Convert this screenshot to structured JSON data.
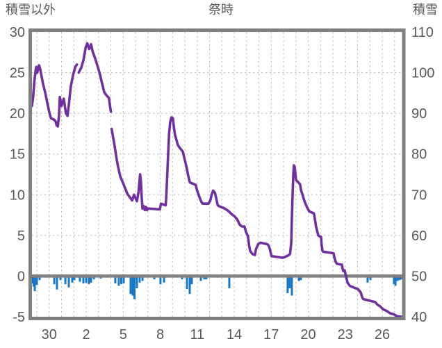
{
  "chart_data": {
    "type": "line",
    "title": "祭時",
    "left_axis": {
      "title": "積雪以外",
      "min": -5,
      "max": 30,
      "ticks": [
        30,
        25,
        20,
        15,
        10,
        5,
        0,
        -5
      ]
    },
    "right_axis": {
      "title": "積雪",
      "min": 40,
      "max": 110,
      "ticks": [
        110,
        100,
        90,
        80,
        70,
        60,
        50,
        40
      ]
    },
    "x_axis": {
      "tick_labels": [
        "30",
        "2",
        "5",
        "8",
        "11",
        "14",
        "17",
        "20",
        "23",
        "26"
      ],
      "tick_days": [
        1,
        4,
        7,
        10,
        13,
        16,
        19,
        22,
        25,
        28
      ],
      "day_min": -0.4,
      "day_max": 29.6,
      "gridline_count": 30
    },
    "grid": {
      "color": "#bdbdbd",
      "h_values": [
        25,
        20,
        15,
        10,
        5
      ]
    },
    "zero_line": {
      "value": 0,
      "color": "#808080"
    },
    "frame_color": "#808080",
    "text_color": "#595959",
    "series": [
      {
        "name": "snow-line",
        "type": "line",
        "axis": "left",
        "color": "#7030A0",
        "segments": [
          [
            [
              -0.4,
              20.9
            ],
            [
              -0.3,
              22.0
            ],
            [
              -0.2,
              24.0
            ],
            [
              -0.1,
              25.3
            ],
            [
              -0.05,
              25.7
            ],
            [
              0.03,
              25.0
            ],
            [
              0.17,
              25.9
            ],
            [
              0.28,
              25.4
            ],
            [
              0.49,
              23.7
            ],
            [
              0.67,
              22.6
            ],
            [
              0.86,
              21.2
            ],
            [
              1.01,
              20.1
            ],
            [
              1.14,
              19.4
            ],
            [
              1.41,
              19.2
            ],
            [
              1.52,
              19.0
            ],
            [
              1.61,
              18.5
            ],
            [
              1.7,
              18.4
            ],
            [
              1.8,
              19.8
            ],
            [
              1.86,
              22.0
            ],
            [
              1.99,
              20.9
            ],
            [
              2.18,
              21.8
            ],
            [
              2.36,
              20.0
            ],
            [
              2.48,
              19.7
            ],
            [
              2.59,
              21.0
            ],
            [
              2.74,
              23.2
            ],
            [
              2.93,
              24.7
            ],
            [
              3.11,
              25.7
            ],
            [
              3.25,
              26.0
            ]
          ],
          [
            [
              3.39,
              25.0
            ],
            [
              3.6,
              25.6
            ],
            [
              3.77,
              26.5
            ],
            [
              3.96,
              28.1
            ],
            [
              4.09,
              28.6
            ],
            [
              4.24,
              27.9
            ],
            [
              4.39,
              28.5
            ],
            [
              4.52,
              27.6
            ],
            [
              4.71,
              26.8
            ],
            [
              4.9,
              25.9
            ],
            [
              5.08,
              25.0
            ],
            [
              5.28,
              23.7
            ],
            [
              5.46,
              22.6
            ],
            [
              5.65,
              22.2
            ],
            [
              5.84,
              21.9
            ],
            [
              5.93,
              20.9
            ],
            [
              6.0,
              20.2
            ]
          ],
          [
            [
              6.06,
              18.1
            ],
            [
              6.18,
              17.1
            ],
            [
              6.31,
              15.9
            ],
            [
              6.4,
              15.0
            ],
            [
              6.49,
              14.2
            ],
            [
              6.59,
              13.4
            ],
            [
              6.77,
              12.2
            ],
            [
              6.97,
              11.5
            ],
            [
              7.15,
              10.8
            ],
            [
              7.34,
              10.1
            ],
            [
              7.53,
              9.7
            ],
            [
              7.72,
              9.3
            ],
            [
              7.88,
              10.0
            ],
            [
              8.11,
              9.2
            ],
            [
              8.24,
              10.3
            ],
            [
              8.37,
              12.5
            ],
            [
              8.43,
              11.7
            ],
            [
              8.5,
              9.7
            ],
            [
              8.56,
              8.3
            ],
            [
              8.66,
              8.6
            ],
            [
              8.75,
              8.1
            ],
            [
              8.84,
              8.5
            ],
            [
              8.94,
              8.1
            ],
            [
              9.01,
              8.3
            ],
            [
              9.97,
              8.2
            ],
            [
              10.06,
              8.9
            ],
            [
              10.44,
              8.7
            ],
            [
              10.49,
              9.7
            ],
            [
              10.57,
              12.5
            ],
            [
              10.65,
              15.3
            ],
            [
              10.72,
              17.5
            ],
            [
              10.81,
              18.9
            ],
            [
              10.91,
              19.5
            ],
            [
              11.02,
              19.4
            ],
            [
              11.1,
              18.4
            ],
            [
              11.19,
              17.4
            ],
            [
              11.32,
              16.7
            ],
            [
              11.43,
              16.1
            ],
            [
              11.56,
              15.8
            ],
            [
              11.83,
              15.3
            ],
            [
              12.0,
              14.2
            ],
            [
              12.13,
              13.4
            ],
            [
              12.26,
              12.4
            ],
            [
              12.37,
              11.7
            ],
            [
              12.41,
              11.5
            ],
            [
              12.88,
              11.2
            ],
            [
              12.97,
              10.6
            ],
            [
              13.16,
              9.8
            ],
            [
              13.31,
              9.2
            ],
            [
              13.44,
              8.9
            ],
            [
              13.91,
              8.9
            ],
            [
              14.06,
              9.3
            ],
            [
              14.19,
              10.1
            ],
            [
              14.29,
              10.5
            ],
            [
              14.44,
              10.2
            ],
            [
              14.53,
              9.6
            ],
            [
              14.66,
              8.7
            ],
            [
              14.76,
              8.6
            ],
            [
              15.23,
              8.3
            ],
            [
              15.42,
              8.1
            ],
            [
              15.6,
              7.9
            ],
            [
              15.79,
              7.6
            ],
            [
              15.98,
              7.4
            ],
            [
              16.17,
              7.1
            ],
            [
              16.26,
              6.9
            ],
            [
              16.45,
              6.3
            ],
            [
              16.62,
              6.1
            ],
            [
              16.83,
              6.1
            ],
            [
              16.88,
              5.8
            ],
            [
              16.96,
              5.4
            ],
            [
              17.11,
              4.9
            ],
            [
              17.2,
              3.8
            ],
            [
              17.29,
              3.1
            ],
            [
              17.48,
              2.7
            ],
            [
              17.67,
              2.6
            ],
            [
              17.76,
              3.3
            ],
            [
              17.95,
              3.95
            ],
            [
              18.14,
              4.1
            ],
            [
              18.7,
              3.9
            ],
            [
              18.8,
              3.7
            ],
            [
              18.89,
              3.3
            ],
            [
              19.02,
              2.45
            ],
            [
              19.92,
              2.25
            ],
            [
              20.11,
              2.35
            ],
            [
              20.39,
              2.55
            ],
            [
              20.52,
              2.7
            ],
            [
              20.62,
              4.1
            ],
            [
              20.67,
              6.9
            ],
            [
              20.73,
              10.0
            ],
            [
              20.79,
              12.5
            ],
            [
              20.83,
              13.6
            ],
            [
              20.9,
              13.4
            ],
            [
              20.95,
              12.7
            ],
            [
              21.01,
              11.8
            ],
            [
              21.33,
              11.3
            ],
            [
              21.42,
              10.5
            ],
            [
              21.52,
              10.1
            ],
            [
              21.61,
              9.6
            ],
            [
              21.7,
              9.2
            ],
            [
              21.8,
              8.8
            ],
            [
              21.95,
              8.3
            ],
            [
              22.08,
              7.95
            ],
            [
              22.46,
              7.7
            ],
            [
              22.55,
              6.9
            ],
            [
              22.64,
              6.05
            ],
            [
              22.76,
              5.3
            ],
            [
              22.83,
              4.95
            ],
            [
              23.04,
              4.8
            ],
            [
              23.08,
              3.9
            ],
            [
              23.15,
              3.1
            ],
            [
              23.21,
              3.0
            ],
            [
              24.05,
              2.8
            ],
            [
              24.15,
              2.1
            ],
            [
              24.24,
              1.7
            ],
            [
              24.33,
              1.5
            ],
            [
              24.73,
              1.4
            ],
            [
              24.77,
              1.0
            ],
            [
              24.84,
              0.6
            ],
            [
              24.95,
              0.7
            ],
            [
              25.03,
              0.2
            ],
            [
              25.18,
              -0.8
            ],
            [
              25.37,
              -1.2
            ],
            [
              25.84,
              -1.5
            ],
            [
              26.03,
              -1.6
            ],
            [
              26.25,
              -2.0
            ],
            [
              26.4,
              -2.7
            ],
            [
              26.49,
              -2.85
            ],
            [
              27.43,
              -3.2
            ],
            [
              27.59,
              -3.5
            ],
            [
              27.81,
              -3.7
            ],
            [
              28.09,
              -4.1
            ],
            [
              28.37,
              -4.3
            ],
            [
              28.66,
              -4.6
            ],
            [
              28.94,
              -4.7
            ],
            [
              29.22,
              -4.95
            ],
            [
              29.6,
              -5.0
            ]
          ]
        ]
      },
      {
        "name": "precip-bars",
        "type": "bar",
        "axis": "left",
        "color": "#1777C8",
        "baseline": 0,
        "points": [
          [
            -0.34,
            -0.9
          ],
          [
            -0.26,
            -1.3
          ],
          [
            -0.17,
            -1.85
          ],
          [
            0.0,
            -1.1
          ],
          [
            0.22,
            -0.5
          ],
          [
            1.41,
            -1.0
          ],
          [
            1.63,
            -1.65
          ],
          [
            1.91,
            -0.5
          ],
          [
            2.31,
            -1.0
          ],
          [
            2.59,
            -1.4
          ],
          [
            2.87,
            -0.8
          ],
          [
            3.04,
            -0.5
          ],
          [
            3.49,
            -0.7
          ],
          [
            3.77,
            -0.9
          ],
          [
            4.0,
            -0.85
          ],
          [
            4.22,
            -1.0
          ],
          [
            4.39,
            -0.8
          ],
          [
            4.62,
            -0.4
          ],
          [
            5.18,
            -0.3
          ],
          [
            6.36,
            -0.9
          ],
          [
            6.64,
            -1.2
          ],
          [
            6.84,
            -1.0
          ],
          [
            7.04,
            -0.9
          ],
          [
            7.6,
            -2.2
          ],
          [
            7.77,
            -2.4
          ],
          [
            7.91,
            -2.85
          ],
          [
            8.11,
            -1.5
          ],
          [
            8.33,
            -0.8
          ],
          [
            8.56,
            -0.6
          ],
          [
            9.52,
            -0.4
          ],
          [
            10.02,
            -1.0
          ],
          [
            10.31,
            -0.8
          ],
          [
            11.77,
            -0.4
          ],
          [
            12.17,
            -1.6
          ],
          [
            12.39,
            -2.2
          ],
          [
            12.56,
            -1.0
          ],
          [
            13.29,
            -0.6
          ],
          [
            13.57,
            -0.4
          ],
          [
            13.74,
            -0.4
          ],
          [
            15.6,
            -1.5
          ],
          [
            20.33,
            -2.1
          ],
          [
            20.5,
            -1.5
          ],
          [
            20.67,
            -2.4
          ],
          [
            21.24,
            -0.6
          ],
          [
            21.4,
            -0.5
          ],
          [
            26.81,
            -0.8
          ],
          [
            27.04,
            -0.5
          ],
          [
            28.95,
            -1.0
          ],
          [
            29.07,
            -1.2
          ],
          [
            29.24,
            -0.6
          ],
          [
            29.41,
            -0.5
          ],
          [
            29.57,
            -0.4
          ]
        ]
      }
    ]
  }
}
